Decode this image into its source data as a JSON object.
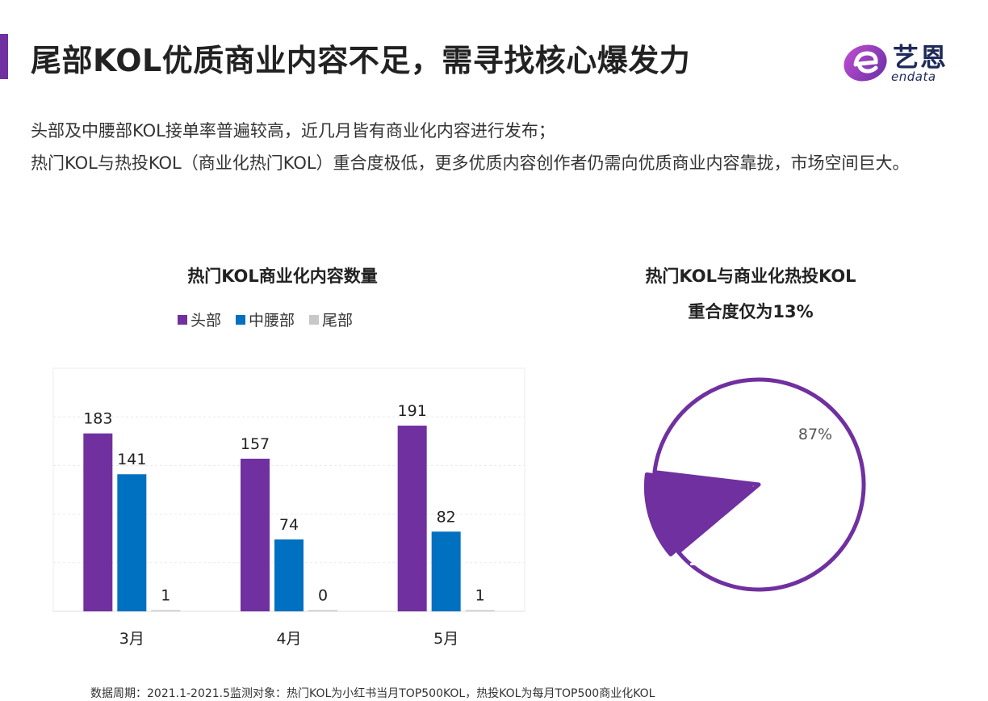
{
  "colors": {
    "accent": "#7030a0",
    "head": "#7030a0",
    "mid": "#0070c0",
    "tail": "#c8c8c8",
    "logo_text": "#1e2a5a"
  },
  "header": {
    "title": "尾部KOL优质商业内容不足，需寻找核心爆发力"
  },
  "logo": {
    "icon": "endata-logo-icon",
    "cn": "艺恩",
    "en": "endata"
  },
  "intro": {
    "line1": "头部及中腰部KOL接单率普遍较高，近几月皆有商业化内容进行发布；",
    "line2": "热门KOL与热投KOL（商业化热门KOL）重合度极低，更多优质内容创作者仍需向优质商业内容靠拢，市场空间巨大。"
  },
  "chart_data": [
    {
      "type": "bar",
      "title": "热门KOL商业化内容数量",
      "categories": [
        "3月",
        "4月",
        "5月"
      ],
      "series": [
        {
          "name": "头部",
          "values": [
            183,
            157,
            191
          ]
        },
        {
          "name": "中腰部",
          "values": [
            141,
            74,
            82
          ]
        },
        {
          "name": "尾部",
          "values": [
            1,
            0,
            1
          ]
        }
      ],
      "ylim": [
        0,
        250
      ],
      "grid": true,
      "legend": "top"
    },
    {
      "type": "pie",
      "title_line1": "热门KOL与商业化热投KOL",
      "title_line2": "重合度仅为13%",
      "slices": [
        {
          "label": "87%",
          "value": 87
        },
        {
          "label": "13%",
          "value": 13
        }
      ]
    }
  ],
  "footnote": "数据周期：2021.1-2021.5监测对象：热门KOL为小红书当月TOP500KOL，热投KOL为每月TOP500商业化KOL"
}
